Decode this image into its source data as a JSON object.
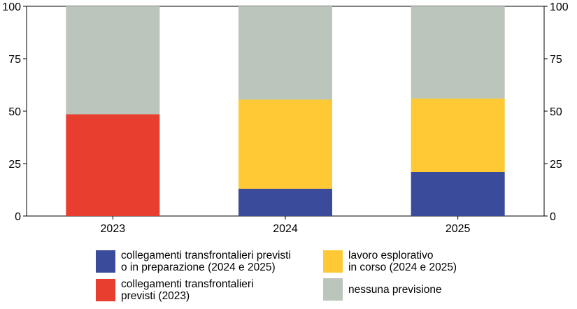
{
  "chart_data": {
    "type": "bar",
    "stacked": true,
    "categories": [
      "2023",
      "2024",
      "2025"
    ],
    "ylim": [
      0,
      100
    ],
    "yticks": [
      0,
      25,
      50,
      75,
      100
    ],
    "y_axis_both_sides": true,
    "grid": false,
    "series": [
      {
        "name": "collegamenti transfrontalieri previsti\no in preparazione (2024 e 2025)",
        "color": "#394b9a",
        "values": [
          0,
          13,
          21
        ]
      },
      {
        "name": "collegamenti transfrontalieri\nprevisti (2023)",
        "color": "#e83e30",
        "values": [
          48.5,
          0,
          0
        ]
      },
      {
        "name": "lavoro esplorativo\nin corso (2024 e 2025)",
        "color": "#fec935",
        "values": [
          0,
          42.5,
          35
        ]
      },
      {
        "name": "nessuna previsione",
        "color": "#bcc5bc",
        "values": [
          51.5,
          44.5,
          44
        ]
      }
    ],
    "legend_placement": "bottom"
  }
}
